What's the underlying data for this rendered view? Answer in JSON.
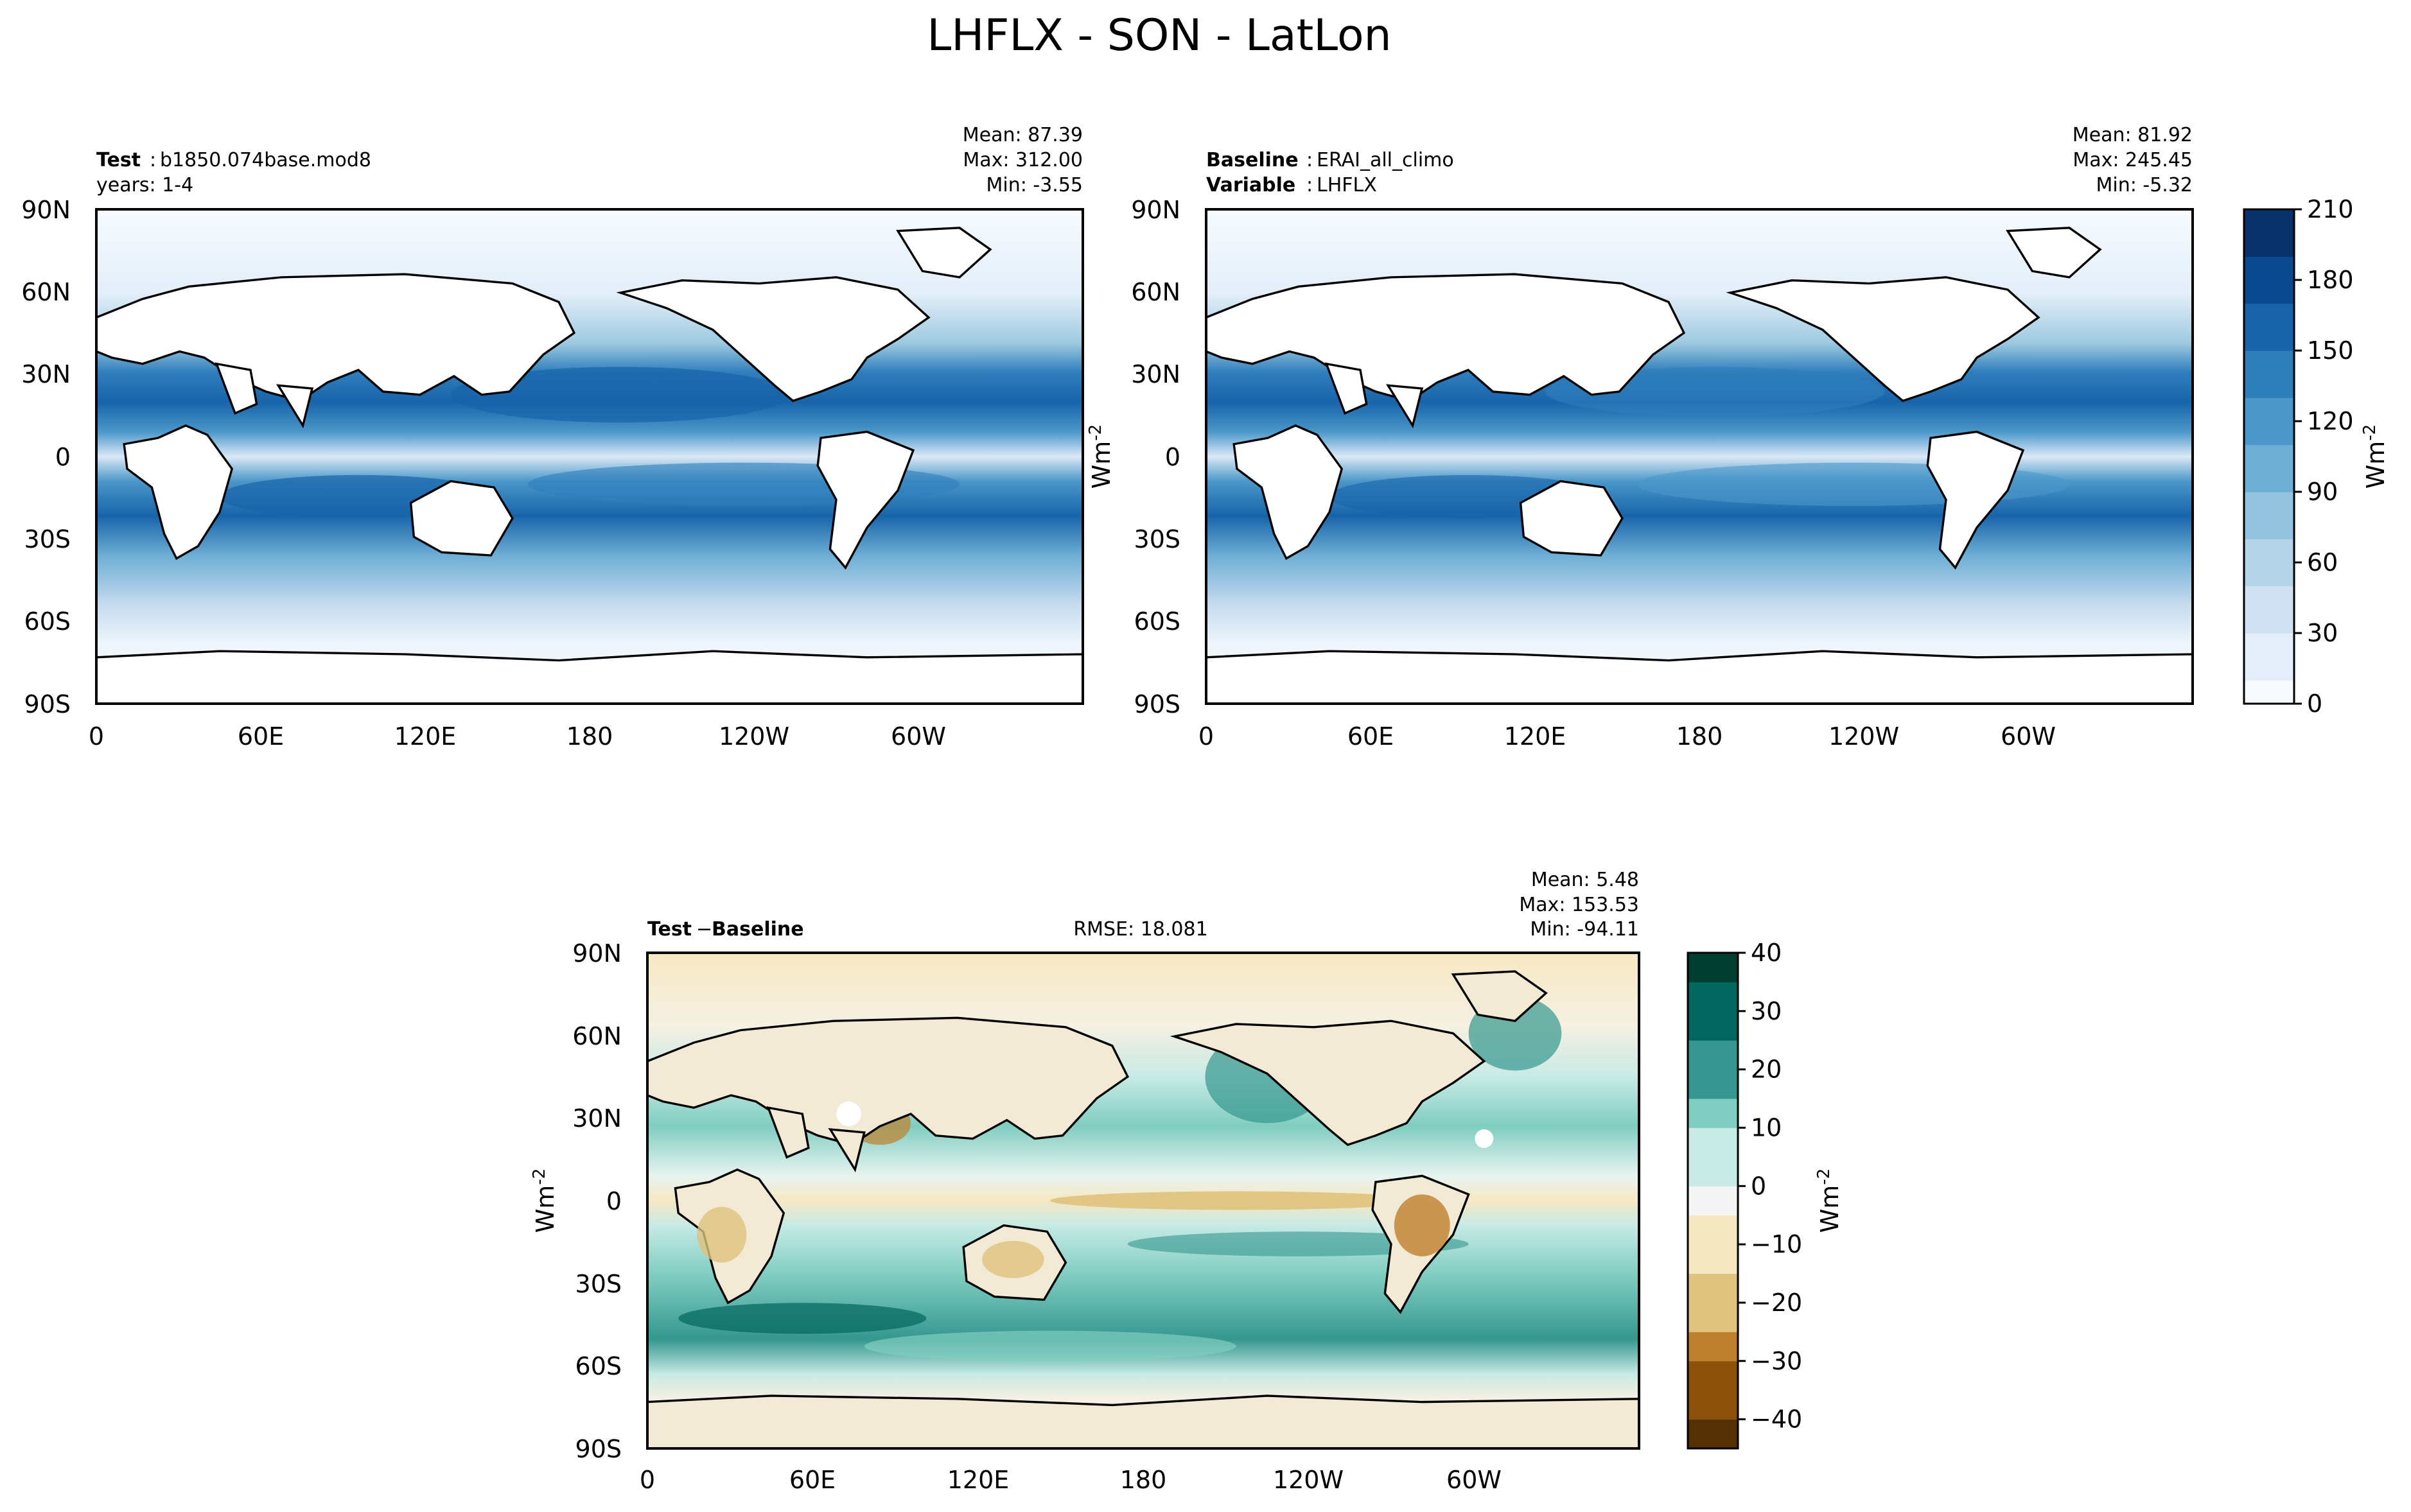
{
  "title": "LHFLX - SON - LatLon",
  "colors": {
    "land_bg": "#ffffff",
    "sequential_ramp": [
      "#f7fbff",
      "#e3eef9",
      "#cfe1f2",
      "#b5d4e9",
      "#93c3df",
      "#6daed5",
      "#4b97c9",
      "#2f7ebc",
      "#1864aa",
      "#0a4a90",
      "#08306b"
    ],
    "diverging_ramp": [
      "#543005",
      "#8c510a",
      "#bf812d",
      "#dfc27d",
      "#f6e8c3",
      "#f5f5f5",
      "#c7eae5",
      "#80cdc1",
      "#35978f",
      "#01665e",
      "#003c30"
    ]
  },
  "chart_data": [
    {
      "type": "heatmap",
      "panel": "test",
      "left_title": {
        "label": "Test",
        "value": "b1850.074base.mod8"
      },
      "left_title_line2": "years: 1-4",
      "stats": {
        "mean": "Mean: 87.39",
        "max": "Max: 312.00",
        "min": "Min: -3.55"
      },
      "x_ticks": [
        "0",
        "60E",
        "120E",
        "180",
        "120W",
        "60W"
      ],
      "y_ticks": [
        "90N",
        "60N",
        "30N",
        "0",
        "30S",
        "60S",
        "90S"
      ],
      "ylabel": "",
      "grid": false
    },
    {
      "type": "heatmap",
      "panel": "baseline",
      "left_title": {
        "label": "Baseline",
        "value": "ERAI_all_climo"
      },
      "left_title_line2": {
        "label": "Variable",
        "value": "LHFLX"
      },
      "stats": {
        "mean": "Mean: 81.92",
        "max": "Max: 245.45",
        "min": "Min: -5.32"
      },
      "x_ticks": [
        "0",
        "60E",
        "120E",
        "180",
        "120W",
        "60W"
      ],
      "y_ticks": [
        "90N",
        "60N",
        "30N",
        "0",
        "30S",
        "60S",
        "90S"
      ],
      "ylabel": "Wm",
      "ylabel_sup": "-2",
      "colorbar": {
        "range": [
          0,
          210
        ],
        "ticks": [
          "0",
          "30",
          "60",
          "90",
          "120",
          "150",
          "180",
          "210"
        ],
        "label": "Wm",
        "label_sup": "-2"
      },
      "grid": false
    },
    {
      "type": "heatmap",
      "panel": "difference",
      "left_title": {
        "label_a": "Test",
        "minus": "−",
        "label_b": "Baseline"
      },
      "center_title": "RMSE: 18.081",
      "stats": {
        "mean": "Mean:  5.48",
        "max": "Max: 153.53",
        "min": "Min: -94.11"
      },
      "x_ticks": [
        "0",
        "60E",
        "120E",
        "180",
        "120W",
        "60W"
      ],
      "y_ticks": [
        "90N",
        "60N",
        "30N",
        "0",
        "30S",
        "60S",
        "90S"
      ],
      "ylabel": "Wm",
      "ylabel_sup": "-2",
      "colorbar": {
        "range": [
          -45,
          40
        ],
        "ticks": [
          "40",
          "30",
          "20",
          "10",
          "0",
          "−10",
          "−20",
          "−30",
          "−40"
        ],
        "label": "Wm",
        "label_sup": "-2"
      },
      "grid": false
    }
  ]
}
